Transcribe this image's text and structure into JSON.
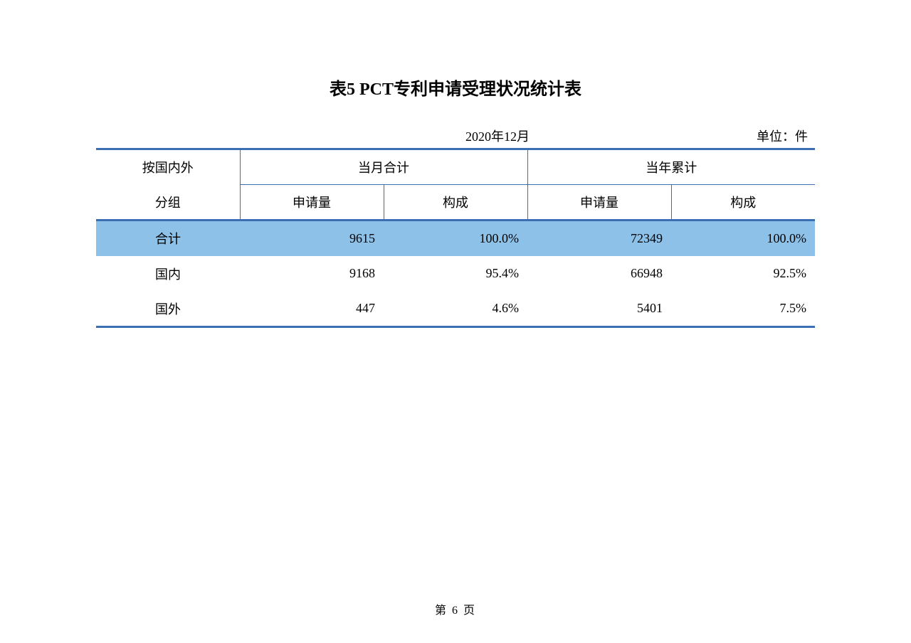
{
  "title": "表5  PCT专利申请受理状况统计表",
  "date": "2020年12月",
  "unit": "单位：件",
  "table": {
    "group_header_line1": "按国内外",
    "group_header_line2": "分组",
    "month_group": "当月合计",
    "year_group": "当年累计",
    "sub_apply": "申请量",
    "sub_ratio": "构成",
    "rows": [
      {
        "label": "合计",
        "m_apply": "9615",
        "m_ratio": "100.0%",
        "y_apply": "72349",
        "y_ratio": "100.0%",
        "highlight": true
      },
      {
        "label": "国内",
        "m_apply": "9168",
        "m_ratio": "95.4%",
        "y_apply": "66948",
        "y_ratio": "92.5%",
        "highlight": false
      },
      {
        "label": "国外",
        "m_apply": "447",
        "m_ratio": "4.6%",
        "y_apply": "5401",
        "y_ratio": "7.5%",
        "highlight": false
      }
    ]
  },
  "colors": {
    "border": "#3c6eb4",
    "highlight_bg": "#8ec1e8",
    "text": "#000000",
    "background": "#ffffff"
  },
  "page_footer": "第 6 页"
}
